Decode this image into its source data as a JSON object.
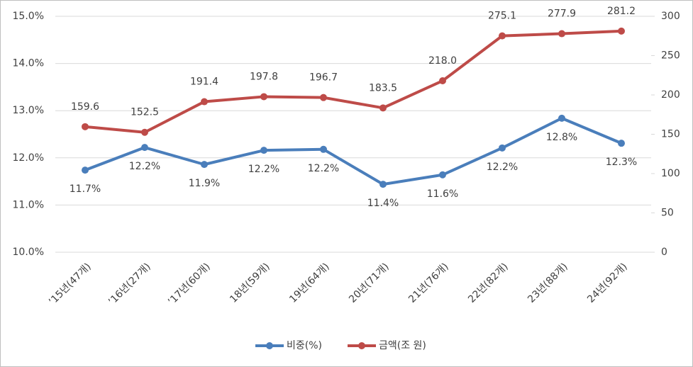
{
  "chart_data": {
    "type": "line",
    "categories": [
      "’15년(47개)",
      "’16년(27개)",
      "’17년(60개)",
      "18년(59개)",
      "19년(64개)",
      "20년(71개)",
      "21년(76개)",
      "22년(82개)",
      "23년(88개)",
      "24년(92개)"
    ],
    "series": [
      {
        "name": "비중(%)",
        "color": "#4a7ebb",
        "values": [
          11.74,
          12.22,
          11.86,
          12.16,
          12.18,
          11.44,
          11.64,
          12.21,
          12.84,
          12.31
        ],
        "value_labels": [
          "11.7%",
          "12.2%",
          "11.9%",
          "12.2%",
          "12.2%",
          "11.4%",
          "11.6%",
          "12.2%",
          "12.8%",
          "12.3%"
        ]
      },
      {
        "name": "금액(조 원)",
        "color": "#be4b48",
        "axis": "y2",
        "values": [
          159.6,
          152.5,
          191.4,
          197.8,
          196.7,
          183.5,
          218.0,
          275.1,
          277.9,
          281.2
        ],
        "value_labels": [
          "159.6",
          "152.5",
          "191.4",
          "197.8",
          "196.7",
          "183.5",
          "218.0",
          "275.1",
          "277.9",
          "281.2"
        ]
      }
    ],
    "ylim": [
      10,
      15
    ],
    "yticks": [
      {
        "value": 10,
        "label": "10.0%"
      },
      {
        "value": 11,
        "label": "11.0%"
      },
      {
        "value": 12,
        "label": "12.0%"
      },
      {
        "value": 13,
        "label": "13.0%"
      },
      {
        "value": 14,
        "label": "14.0%"
      },
      {
        "value": 15,
        "label": "15.0%"
      }
    ],
    "y2lim": [
      0,
      300
    ],
    "y2ticks": [
      0,
      50,
      100,
      150,
      200,
      250,
      300
    ],
    "grid": true,
    "legend": "bottom"
  }
}
